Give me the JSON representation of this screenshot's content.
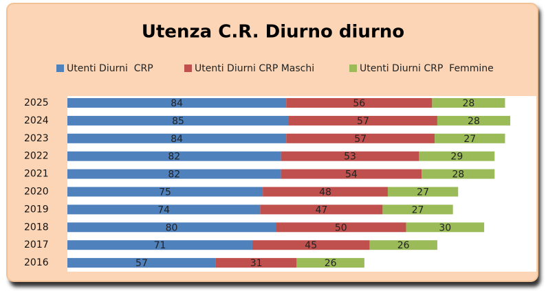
{
  "chart_data": {
    "type": "stacked_bar_horizontal",
    "title": "Utenza C.R. Diurno diurno",
    "categories": [
      "2025",
      "2024",
      "2023",
      "2022",
      "2021",
      "2020",
      "2019",
      "2018",
      "2017",
      "2016"
    ],
    "series": [
      {
        "name": "Utenti Diurni  CRP",
        "color": "#4f81bd",
        "values": [
          84,
          85,
          84,
          82,
          82,
          75,
          74,
          80,
          71,
          57
        ]
      },
      {
        "name": "Utenti Diurni CRP Maschi",
        "color": "#c0504d",
        "values": [
          56,
          57,
          57,
          53,
          54,
          48,
          47,
          50,
          45,
          31
        ]
      },
      {
        "name": "Utenti Diurni CRP  Femmine",
        "color": "#9bbb59",
        "values": [
          28,
          28,
          27,
          29,
          28,
          27,
          27,
          30,
          26,
          26
        ]
      }
    ],
    "legend": "top"
  }
}
